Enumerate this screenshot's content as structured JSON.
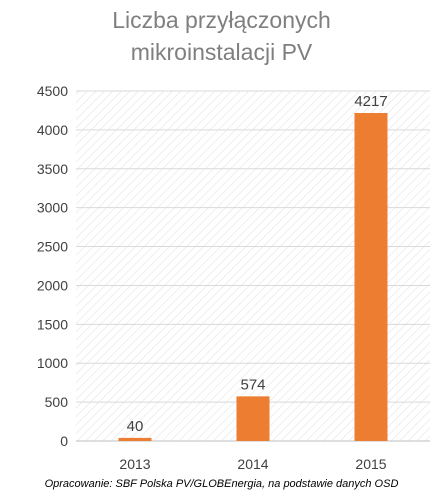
{
  "chart_data": {
    "type": "bar",
    "title_lines": [
      "Liczba przyłączonych",
      "mikroinstalacji PV"
    ],
    "categories": [
      "2013",
      "2014",
      "2015"
    ],
    "values": [
      40,
      574,
      4217
    ],
    "data_labels": [
      "40",
      "574",
      "4217"
    ],
    "ylim": [
      0,
      4500
    ],
    "y_ticks": [
      "0",
      "500",
      "1000",
      "1500",
      "2000",
      "2500",
      "3000",
      "3500",
      "4000",
      "4500"
    ],
    "grid": true,
    "legend": "none",
    "xlabel": "",
    "ylabel": ""
  },
  "colors": {
    "bar": "#ed7d31",
    "title": "#7f7f7f",
    "grid": "#d9d9d9",
    "text": "#404040"
  },
  "source_note": "Opracowanie: SBF Polska PV/GLOBEnergia, na podstawie danych OSD"
}
